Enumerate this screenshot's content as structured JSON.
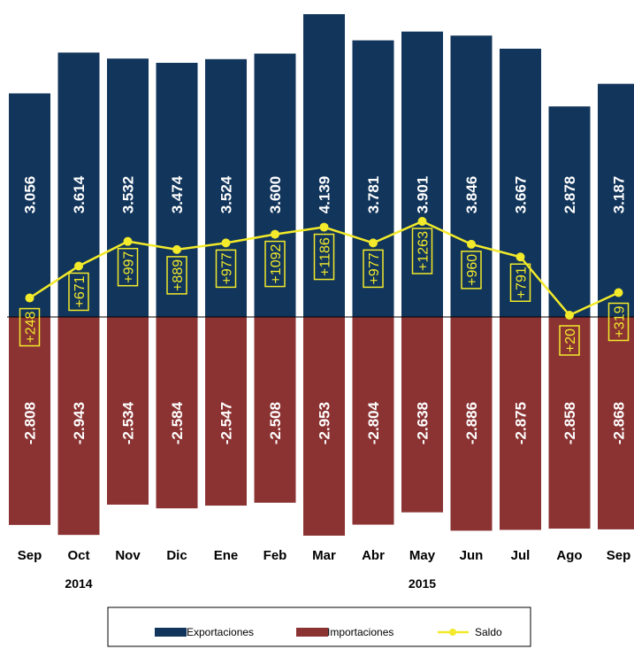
{
  "colors": {
    "exportaciones": "#12355b",
    "importaciones": "#8b3333",
    "saldo": "#f2ea2a"
  },
  "chart_data": {
    "type": "bar",
    "categories": [
      "Sep",
      "Oct",
      "Nov",
      "Dic",
      "Ene",
      "Feb",
      "Mar",
      "Abr",
      "May",
      "Jun",
      "Jul",
      "Ago",
      "Sep"
    ],
    "year_labels": [
      {
        "label": "2014",
        "category_index": 1
      },
      {
        "label": "2015",
        "category_index": 8
      }
    ],
    "series": [
      {
        "name": "Exportaciones",
        "type": "bar",
        "values": [
          3056,
          3614,
          3532,
          3474,
          3524,
          3600,
          4139,
          3781,
          3901,
          3846,
          3667,
          2878,
          3187
        ],
        "labels": [
          "3.056",
          "3.614",
          "3.532",
          "3.474",
          "3.524",
          "3.600",
          "4.139",
          "3.781",
          "3.901",
          "3.846",
          "3.667",
          "2.878",
          "3.187"
        ]
      },
      {
        "name": "Importaciones",
        "type": "bar",
        "values": [
          -2808,
          -2943,
          -2534,
          -2584,
          -2547,
          -2508,
          -2953,
          -2804,
          -2638,
          -2886,
          -2875,
          -2858,
          -2868
        ],
        "labels": [
          "-2.808",
          "-2.943",
          "-2.534",
          "-2.584",
          "-2.547",
          "-2.508",
          "-2.953",
          "-2.804",
          "-2.638",
          "-2.886",
          "-2.875",
          "-2.858",
          "-2.868"
        ]
      },
      {
        "name": "Saldo",
        "type": "line",
        "values": [
          248,
          671,
          997,
          889,
          977,
          1092,
          1186,
          977,
          1263,
          960,
          791,
          20,
          319
        ],
        "labels": [
          "+248",
          "+671",
          "+997",
          "+889",
          "+977",
          "+1092",
          "+1186",
          "+977",
          "+1263",
          "+960",
          "+791",
          "+20",
          "+319"
        ]
      }
    ],
    "legend": {
      "position": "bottom",
      "entries": [
        "Exportaciones",
        "Importaciones",
        "Saldo"
      ]
    },
    "grid": false
  }
}
